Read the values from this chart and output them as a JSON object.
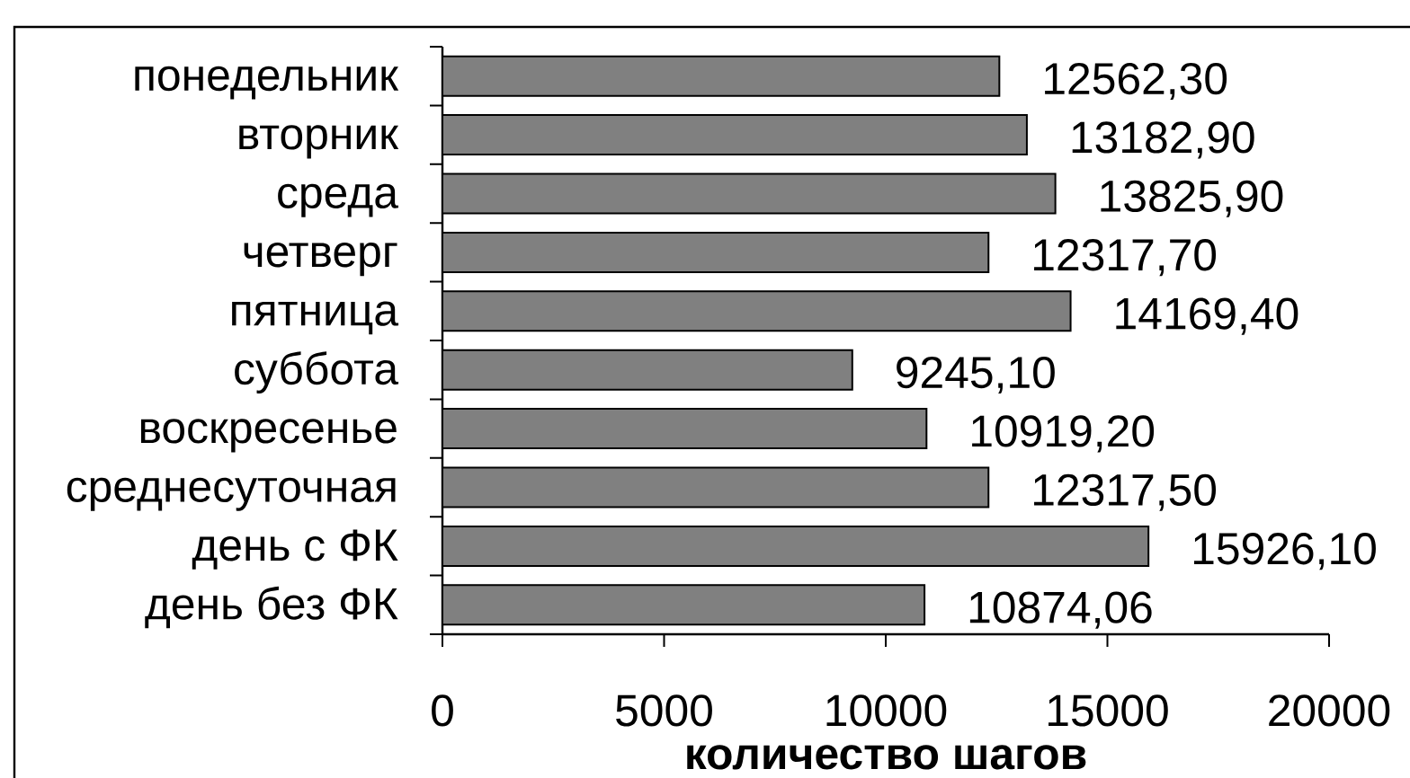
{
  "chart_data": {
    "type": "bar",
    "orientation": "horizontal",
    "categories": [
      "понедельник",
      "вторник",
      "среда",
      "четверг",
      "пятница",
      "суббота",
      "воскресенье",
      "среднесуточная",
      "день с ФК",
      "день без ФК"
    ],
    "values": [
      12562.3,
      13182.9,
      13825.9,
      12317.7,
      14169.4,
      9245.1,
      10919.2,
      12317.5,
      15926.1,
      10874.06
    ],
    "value_labels": [
      "12562,30",
      "13182,90",
      "13825,90",
      "12317,70",
      "14169,40",
      "9245,10",
      "10919,20",
      "12317,50",
      "15926,10",
      "10874,06"
    ],
    "color": "#808080",
    "xlabel": "количество шагов",
    "xlim": [
      0,
      20000
    ],
    "xticks": [
      0,
      5000,
      10000,
      15000,
      20000
    ]
  }
}
